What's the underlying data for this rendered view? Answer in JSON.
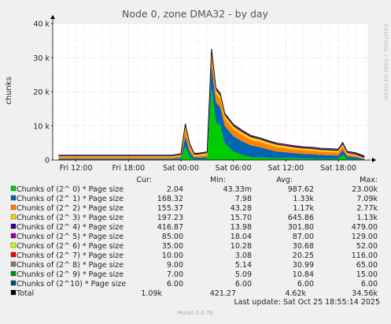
{
  "title": "Node 0, zone DMA32 - by day",
  "ylabel": "chunks",
  "side_label": "RRDTOOL / TOBI OETIKER",
  "y_ticks": [
    "0",
    "10 k",
    "20 k",
    "30 k",
    "40 k"
  ],
  "x_ticks": [
    "Fri 12:00",
    "Fri 18:00",
    "Sat 00:00",
    "Sat 06:00",
    "Sat 12:00",
    "Sat 18:00"
  ],
  "columns": [
    "Cur:",
    "Min:",
    "Avg:",
    "Max:"
  ],
  "rows": [
    {
      "label": "Chunks of (2^ 0) * Page size",
      "color": "#00cc00",
      "cur": "2.04",
      "min": "43.33m",
      "avg": "987.62",
      "max": "23.00k"
    },
    {
      "label": "Chunks of (2^ 1) * Page size",
      "color": "#0066b3",
      "cur": "168.32",
      "min": "7.98",
      "avg": "1.33k",
      "max": "7.09k"
    },
    {
      "label": "Chunks of (2^ 2) * Page size",
      "color": "#ff8000",
      "cur": "155.37",
      "min": "43.28",
      "avg": "1.17k",
      "max": "2.77k"
    },
    {
      "label": "Chunks of (2^ 3) * Page size",
      "color": "#ffcc00",
      "cur": "197.23",
      "min": "15.70",
      "avg": "645.86",
      "max": "1.13k"
    },
    {
      "label": "Chunks of (2^ 4) * Page size",
      "color": "#330099",
      "cur": "416.87",
      "min": "13.98",
      "avg": "301.80",
      "max": "479.00"
    },
    {
      "label": "Chunks of (2^ 5) * Page size",
      "color": "#990099",
      "cur": "85.00",
      "min": "18.04",
      "avg": "87.00",
      "max": "129.00"
    },
    {
      "label": "Chunks of (2^ 6) * Page size",
      "color": "#ccff00",
      "cur": "35.00",
      "min": "10.28",
      "avg": "30.68",
      "max": "52.00"
    },
    {
      "label": "Chunks of (2^ 7) * Page size",
      "color": "#ff0000",
      "cur": "10.00",
      "min": "3.08",
      "avg": "20.25",
      "max": "116.00"
    },
    {
      "label": "Chunks of (2^ 8) * Page size",
      "color": "#808080",
      "cur": "9.00",
      "min": "5.14",
      "avg": "30.99",
      "max": "65.00"
    },
    {
      "label": "Chunks of (2^ 9) * Page size",
      "color": "#008f00",
      "cur": "7.00",
      "min": "5.09",
      "avg": "10.84",
      "max": "15.00"
    },
    {
      "label": "Chunks of (2^10) * Page size",
      "color": "#00487d",
      "cur": "6.00",
      "min": "6.00",
      "avg": "6.00",
      "max": "6.00"
    },
    {
      "label": "Total",
      "color": "#000000",
      "cur": "1.09k",
      "min": "421.27",
      "avg": "4.62k",
      "max": "34.56k"
    }
  ],
  "last_update": "Last update: Sat Oct 25 18:55:14 2025",
  "footer": "Munin 2.0.76",
  "chart_data": {
    "type": "area",
    "stacked": true,
    "title": "Node 0, zone DMA32 - by day",
    "ylabel": "chunks",
    "ylim": [
      0,
      40000
    ],
    "x_hours": [
      10,
      11,
      12,
      13,
      14,
      15,
      16,
      17,
      18,
      19,
      20,
      21,
      22,
      23,
      24,
      24.5,
      25,
      25.5,
      26,
      27,
      27.5,
      28,
      28.5,
      29,
      30,
      31,
      32,
      33,
      34,
      35,
      36,
      37,
      38,
      39,
      40,
      41,
      42,
      42.5,
      43,
      44,
      45
    ],
    "x_hours_note": "hours after Fri 00:00",
    "series": [
      {
        "name": "Chunks of (2^ 0) * Page size",
        "values": [
          100,
          100,
          100,
          100,
          100,
          100,
          100,
          100,
          100,
          100,
          100,
          100,
          100,
          100,
          200,
          4000,
          800,
          200,
          200,
          300,
          21000,
          11000,
          10000,
          5000,
          2500,
          1500,
          800,
          800,
          600,
          500,
          500,
          500,
          400,
          400,
          300,
          300,
          300,
          1500,
          300,
          200,
          50
        ]
      },
      {
        "name": "Chunks of (2^ 1) * Page size",
        "values": [
          300,
          300,
          300,
          300,
          300,
          300,
          300,
          300,
          300,
          300,
          300,
          300,
          300,
          300,
          500,
          3000,
          1500,
          500,
          500,
          600,
          7000,
          6000,
          5500,
          5000,
          4500,
          4000,
          3500,
          3000,
          2500,
          2000,
          1800,
          1500,
          1400,
          1300,
          1200,
          1100,
          1000,
          1500,
          800,
          600,
          200
        ]
      },
      {
        "name": "Chunks of (2^ 2) * Page size",
        "values": [
          400,
          400,
          400,
          400,
          400,
          400,
          400,
          400,
          400,
          400,
          400,
          400,
          400,
          400,
          500,
          2000,
          1200,
          500,
          500,
          600,
          2700,
          2500,
          2400,
          2200,
          2000,
          1800,
          1600,
          1500,
          1400,
          1300,
          1200,
          1100,
          1000,
          1000,
          900,
          900,
          900,
          1000,
          600,
          500,
          200
        ]
      },
      {
        "name": "Chunks of (2^ 3) * Page size",
        "values": [
          300,
          300,
          300,
          300,
          300,
          300,
          300,
          300,
          300,
          300,
          300,
          300,
          300,
          300,
          300,
          900,
          700,
          400,
          400,
          500,
          1100,
          1000,
          1000,
          950,
          900,
          850,
          800,
          750,
          700,
          650,
          600,
          600,
          600,
          550,
          550,
          550,
          500,
          600,
          400,
          300,
          200
        ]
      },
      {
        "name": "Chunks of (2^ 4) * Page size",
        "values": [
          200,
          200,
          200,
          200,
          200,
          200,
          200,
          200,
          200,
          200,
          200,
          200,
          200,
          200,
          200,
          400,
          350,
          250,
          250,
          250,
          450,
          400,
          400,
          380,
          360,
          340,
          320,
          300,
          300,
          300,
          300,
          300,
          300,
          300,
          300,
          300,
          300,
          350,
          300,
          350,
          400
        ]
      },
      {
        "name": "Chunks of (2^ 5) * Page size",
        "values": [
          60,
          60,
          60,
          60,
          60,
          60,
          60,
          60,
          60,
          60,
          60,
          60,
          60,
          60,
          60,
          110,
          100,
          70,
          70,
          70,
          120,
          110,
          110,
          100,
          100,
          100,
          90,
          90,
          90,
          90,
          90,
          90,
          90,
          90,
          90,
          90,
          90,
          100,
          90,
          90,
          85
        ]
      },
      {
        "name": "Chunks of (2^ 6) * Page size",
        "values": [
          25,
          25,
          25,
          25,
          25,
          25,
          25,
          25,
          25,
          25,
          25,
          25,
          25,
          25,
          25,
          45,
          40,
          30,
          30,
          30,
          50,
          45,
          45,
          40,
          40,
          40,
          35,
          35,
          35,
          35,
          35,
          35,
          35,
          35,
          35,
          35,
          35,
          40,
          35,
          35,
          35
        ]
      },
      {
        "name": "Chunks of (2^ 7) * Page size",
        "values": [
          10,
          10,
          10,
          10,
          10,
          10,
          10,
          10,
          10,
          10,
          10,
          10,
          10,
          10,
          10,
          100,
          60,
          15,
          15,
          20,
          110,
          80,
          60,
          40,
          30,
          25,
          20,
          20,
          20,
          20,
          15,
          15,
          15,
          15,
          15,
          15,
          15,
          30,
          15,
          12,
          10
        ]
      },
      {
        "name": "Chunks of (2^ 8) * Page size",
        "values": [
          20,
          20,
          20,
          20,
          20,
          20,
          20,
          20,
          20,
          20,
          20,
          20,
          20,
          20,
          20,
          60,
          50,
          25,
          25,
          30,
          65,
          60,
          55,
          50,
          45,
          40,
          35,
          35,
          30,
          30,
          30,
          30,
          30,
          30,
          30,
          30,
          30,
          35,
          25,
          15,
          9
        ]
      },
      {
        "name": "Chunks of (2^ 9) * Page size",
        "values": [
          8,
          8,
          8,
          8,
          8,
          8,
          8,
          8,
          8,
          8,
          8,
          8,
          8,
          8,
          8,
          14,
          13,
          9,
          9,
          10,
          15,
          14,
          14,
          13,
          13,
          12,
          12,
          11,
          11,
          11,
          11,
          10,
          10,
          10,
          10,
          10,
          10,
          12,
          9,
          8,
          7
        ]
      },
      {
        "name": "Chunks of (2^10) * Page size",
        "values": [
          6,
          6,
          6,
          6,
          6,
          6,
          6,
          6,
          6,
          6,
          6,
          6,
          6,
          6,
          6,
          6,
          6,
          6,
          6,
          6,
          6,
          6,
          6,
          6,
          6,
          6,
          6,
          6,
          6,
          6,
          6,
          6,
          6,
          6,
          6,
          6,
          6,
          6,
          6,
          6,
          6
        ]
      }
    ]
  }
}
